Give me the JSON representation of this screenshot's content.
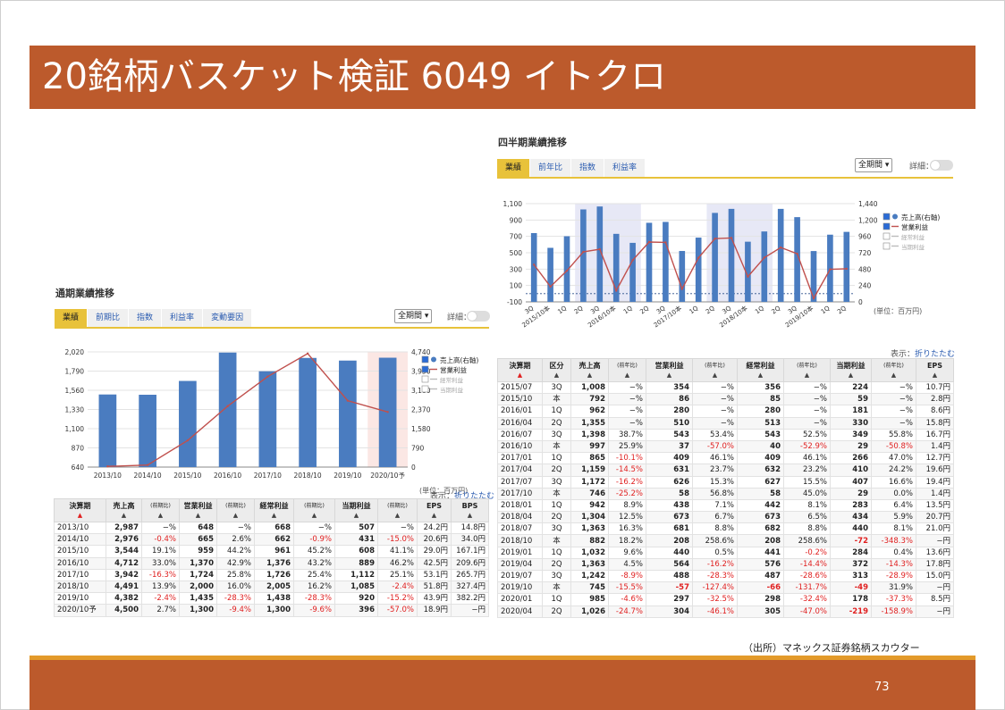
{
  "title": "20銘柄バスケット検証 6049 イトクロ",
  "source": "（出所）マネックス証券銘柄スカウター",
  "page_number": "73",
  "common": {
    "select": "全期間",
    "toggle_label": "詳細：",
    "display_label": "表示：",
    "collapse_link": "折りたたむ",
    "unit": "(単位：百万円)"
  },
  "annual": {
    "title": "通期業績推移",
    "tabs": [
      "業績",
      "前期比",
      "指数",
      "利益率",
      "変動要因"
    ],
    "legend": [
      "売上高(右軸)",
      "営業利益",
      "経常利益",
      "当期利益"
    ],
    "columns": [
      "決算期",
      "売上高",
      "(前期比)",
      "営業利益",
      "(前期比)",
      "経常利益",
      "(前期比)",
      "当期利益",
      "(前期比)",
      "EPS",
      "BPS"
    ],
    "rows": [
      [
        "2013/10",
        "2,987",
        "−%",
        "648",
        "−%",
        "668",
        "−%",
        "507",
        "−%",
        "24.2円",
        "14.8円"
      ],
      [
        "2014/10",
        "2,976",
        "-0.4%",
        "665",
        "2.6%",
        "662",
        "-0.9%",
        "431",
        "-15.0%",
        "20.6円",
        "34.0円"
      ],
      [
        "2015/10",
        "3,544",
        "19.1%",
        "959",
        "44.2%",
        "961",
        "45.2%",
        "608",
        "41.1%",
        "29.0円",
        "167.1円"
      ],
      [
        "2016/10",
        "4,712",
        "33.0%",
        "1,370",
        "42.9%",
        "1,376",
        "43.2%",
        "889",
        "46.2%",
        "42.5円",
        "209.6円"
      ],
      [
        "2017/10",
        "3,942",
        "-16.3%",
        "1,724",
        "25.8%",
        "1,726",
        "25.4%",
        "1,112",
        "25.1%",
        "53.1円",
        "265.7円"
      ],
      [
        "2018/10",
        "4,491",
        "13.9%",
        "2,000",
        "16.0%",
        "2,005",
        "16.2%",
        "1,085",
        "-2.4%",
        "51.8円",
        "327.4円"
      ],
      [
        "2019/10",
        "4,382",
        "-2.4%",
        "1,435",
        "-28.3%",
        "1,438",
        "-28.3%",
        "920",
        "-15.2%",
        "43.9円",
        "382.2円"
      ],
      [
        "2020/10予",
        "4,500",
        "2.7%",
        "1,300",
        "-9.4%",
        "1,300",
        "-9.6%",
        "396",
        "-57.0%",
        "18.9円",
        "−円"
      ]
    ]
  },
  "quarterly": {
    "title": "四半期業績推移",
    "tabs": [
      "業績",
      "前年比",
      "指数",
      "利益率"
    ],
    "legend": [
      "売上高(右軸)",
      "営業利益",
      "経常利益",
      "当期利益"
    ],
    "columns": [
      "決算期",
      "区分",
      "売上高",
      "(前年比)",
      "営業利益",
      "(前年比)",
      "経常利益",
      "(前年比)",
      "当期利益",
      "(前年比)",
      "EPS"
    ],
    "rows": [
      [
        "2015/07",
        "3Q",
        "1,008",
        "−%",
        "354",
        "−%",
        "356",
        "−%",
        "224",
        "−%",
        "10.7円"
      ],
      [
        "2015/10",
        "本",
        "792",
        "−%",
        "86",
        "−%",
        "85",
        "−%",
        "59",
        "−%",
        "2.8円"
      ],
      [
        "2016/01",
        "1Q",
        "962",
        "−%",
        "280",
        "−%",
        "280",
        "−%",
        "181",
        "−%",
        "8.6円"
      ],
      [
        "2016/04",
        "2Q",
        "1,355",
        "−%",
        "510",
        "−%",
        "513",
        "−%",
        "330",
        "−%",
        "15.8円"
      ],
      [
        "2016/07",
        "3Q",
        "1,398",
        "38.7%",
        "543",
        "53.4%",
        "543",
        "52.5%",
        "349",
        "55.8%",
        "16.7円"
      ],
      [
        "2016/10",
        "本",
        "997",
        "25.9%",
        "37",
        "-57.0%",
        "40",
        "-52.9%",
        "29",
        "-50.8%",
        "1.4円"
      ],
      [
        "2017/01",
        "1Q",
        "865",
        "-10.1%",
        "409",
        "46.1%",
        "409",
        "46.1%",
        "266",
        "47.0%",
        "12.7円"
      ],
      [
        "2017/04",
        "2Q",
        "1,159",
        "-14.5%",
        "631",
        "23.7%",
        "632",
        "23.2%",
        "410",
        "24.2%",
        "19.6円"
      ],
      [
        "2017/07",
        "3Q",
        "1,172",
        "-16.2%",
        "626",
        "15.3%",
        "627",
        "15.5%",
        "407",
        "16.6%",
        "19.4円"
      ],
      [
        "2017/10",
        "本",
        "746",
        "-25.2%",
        "58",
        "56.8%",
        "58",
        "45.0%",
        "29",
        "0.0%",
        "1.4円"
      ],
      [
        "2018/01",
        "1Q",
        "942",
        "8.9%",
        "438",
        "7.1%",
        "442",
        "8.1%",
        "283",
        "6.4%",
        "13.5円"
      ],
      [
        "2018/04",
        "2Q",
        "1,304",
        "12.5%",
        "673",
        "6.7%",
        "673",
        "6.5%",
        "434",
        "5.9%",
        "20.7円"
      ],
      [
        "2018/07",
        "3Q",
        "1,363",
        "16.3%",
        "681",
        "8.8%",
        "682",
        "8.8%",
        "440",
        "8.1%",
        "21.0円"
      ],
      [
        "2018/10",
        "本",
        "882",
        "18.2%",
        "208",
        "258.6%",
        "208",
        "258.6%",
        "-72",
        "-348.3%",
        "−円"
      ],
      [
        "2019/01",
        "1Q",
        "1,032",
        "9.6%",
        "440",
        "0.5%",
        "441",
        "-0.2%",
        "284",
        "0.4%",
        "13.6円"
      ],
      [
        "2019/04",
        "2Q",
        "1,363",
        "4.5%",
        "564",
        "-16.2%",
        "576",
        "-14.4%",
        "372",
        "-14.3%",
        "17.8円"
      ],
      [
        "2019/07",
        "3Q",
        "1,242",
        "-8.9%",
        "488",
        "-28.3%",
        "487",
        "-28.6%",
        "313",
        "-28.9%",
        "15.0円"
      ],
      [
        "2019/10",
        "本",
        "745",
        "-15.5%",
        "-57",
        "-127.4%",
        "-66",
        "-131.7%",
        "-49",
        "31.9%",
        "−円"
      ],
      [
        "2020/01",
        "1Q",
        "985",
        "-4.6%",
        "297",
        "-32.5%",
        "298",
        "-32.4%",
        "178",
        "-37.3%",
        "8.5円"
      ],
      [
        "2020/04",
        "2Q",
        "1,026",
        "-24.7%",
        "304",
        "-46.1%",
        "305",
        "-47.0%",
        "-219",
        "-158.9%",
        "−円"
      ]
    ]
  },
  "chart_data": [
    {
      "type": "bar",
      "title": "通期業績推移",
      "categories": [
        "2013/10",
        "2014/10",
        "2015/10",
        "2016/10",
        "2017/10",
        "2018/10",
        "2019/10",
        "2020/10予"
      ],
      "left_ticks": [
        "2,020",
        "1,790",
        "1,560",
        "1,330",
        "1,100",
        "870",
        "640"
      ],
      "right_ticks": [
        "4,740",
        "3,950",
        "3,160",
        "2,370",
        "1,580",
        "790",
        "0"
      ],
      "ylim_left": [
        640,
        2020
      ],
      "ylim_right": [
        0,
        4740
      ],
      "series": [
        {
          "name": "売上高(右軸)",
          "axis": "right",
          "values": [
            2987,
            2976,
            3544,
            4712,
            3942,
            4491,
            4382,
            4500
          ],
          "color": "#4a7cc0"
        },
        {
          "name": "営業利益",
          "axis": "left",
          "values": [
            648,
            665,
            959,
            1370,
            1724,
            2000,
            1435,
            1300
          ],
          "color": "#c0504d"
        }
      ]
    },
    {
      "type": "bar",
      "title": "四半期業績推移",
      "categories": [
        "3Q",
        "2015/10本",
        "1Q",
        "2Q",
        "3Q",
        "2016/10本",
        "1Q",
        "2Q",
        "3Q",
        "2017/10本",
        "1Q",
        "2Q",
        "3Q",
        "2018/10本",
        "1Q",
        "2Q",
        "3Q",
        "2019/10本",
        "1Q",
        "2Q"
      ],
      "left_ticks": [
        "1,100",
        "900",
        "700",
        "500",
        "300",
        "100",
        "-100"
      ],
      "right_ticks": [
        "1,440",
        "1,200",
        "960",
        "720",
        "480",
        "240",
        "0"
      ],
      "ylim_left": [
        -100,
        1100
      ],
      "ylim_right": [
        0,
        1440
      ],
      "series": [
        {
          "name": "売上高(右軸)",
          "axis": "right",
          "values": [
            1008,
            792,
            962,
            1355,
            1398,
            997,
            865,
            1159,
            1172,
            746,
            942,
            1304,
            1363,
            882,
            1032,
            1363,
            1242,
            745,
            985,
            1026
          ],
          "color": "#4a7cc0"
        },
        {
          "name": "営業利益",
          "axis": "left",
          "values": [
            354,
            86,
            280,
            510,
            543,
            37,
            409,
            631,
            626,
            58,
            438,
            673,
            681,
            208,
            440,
            564,
            488,
            -57,
            297,
            304
          ],
          "color": "#c0504d"
        }
      ]
    }
  ]
}
